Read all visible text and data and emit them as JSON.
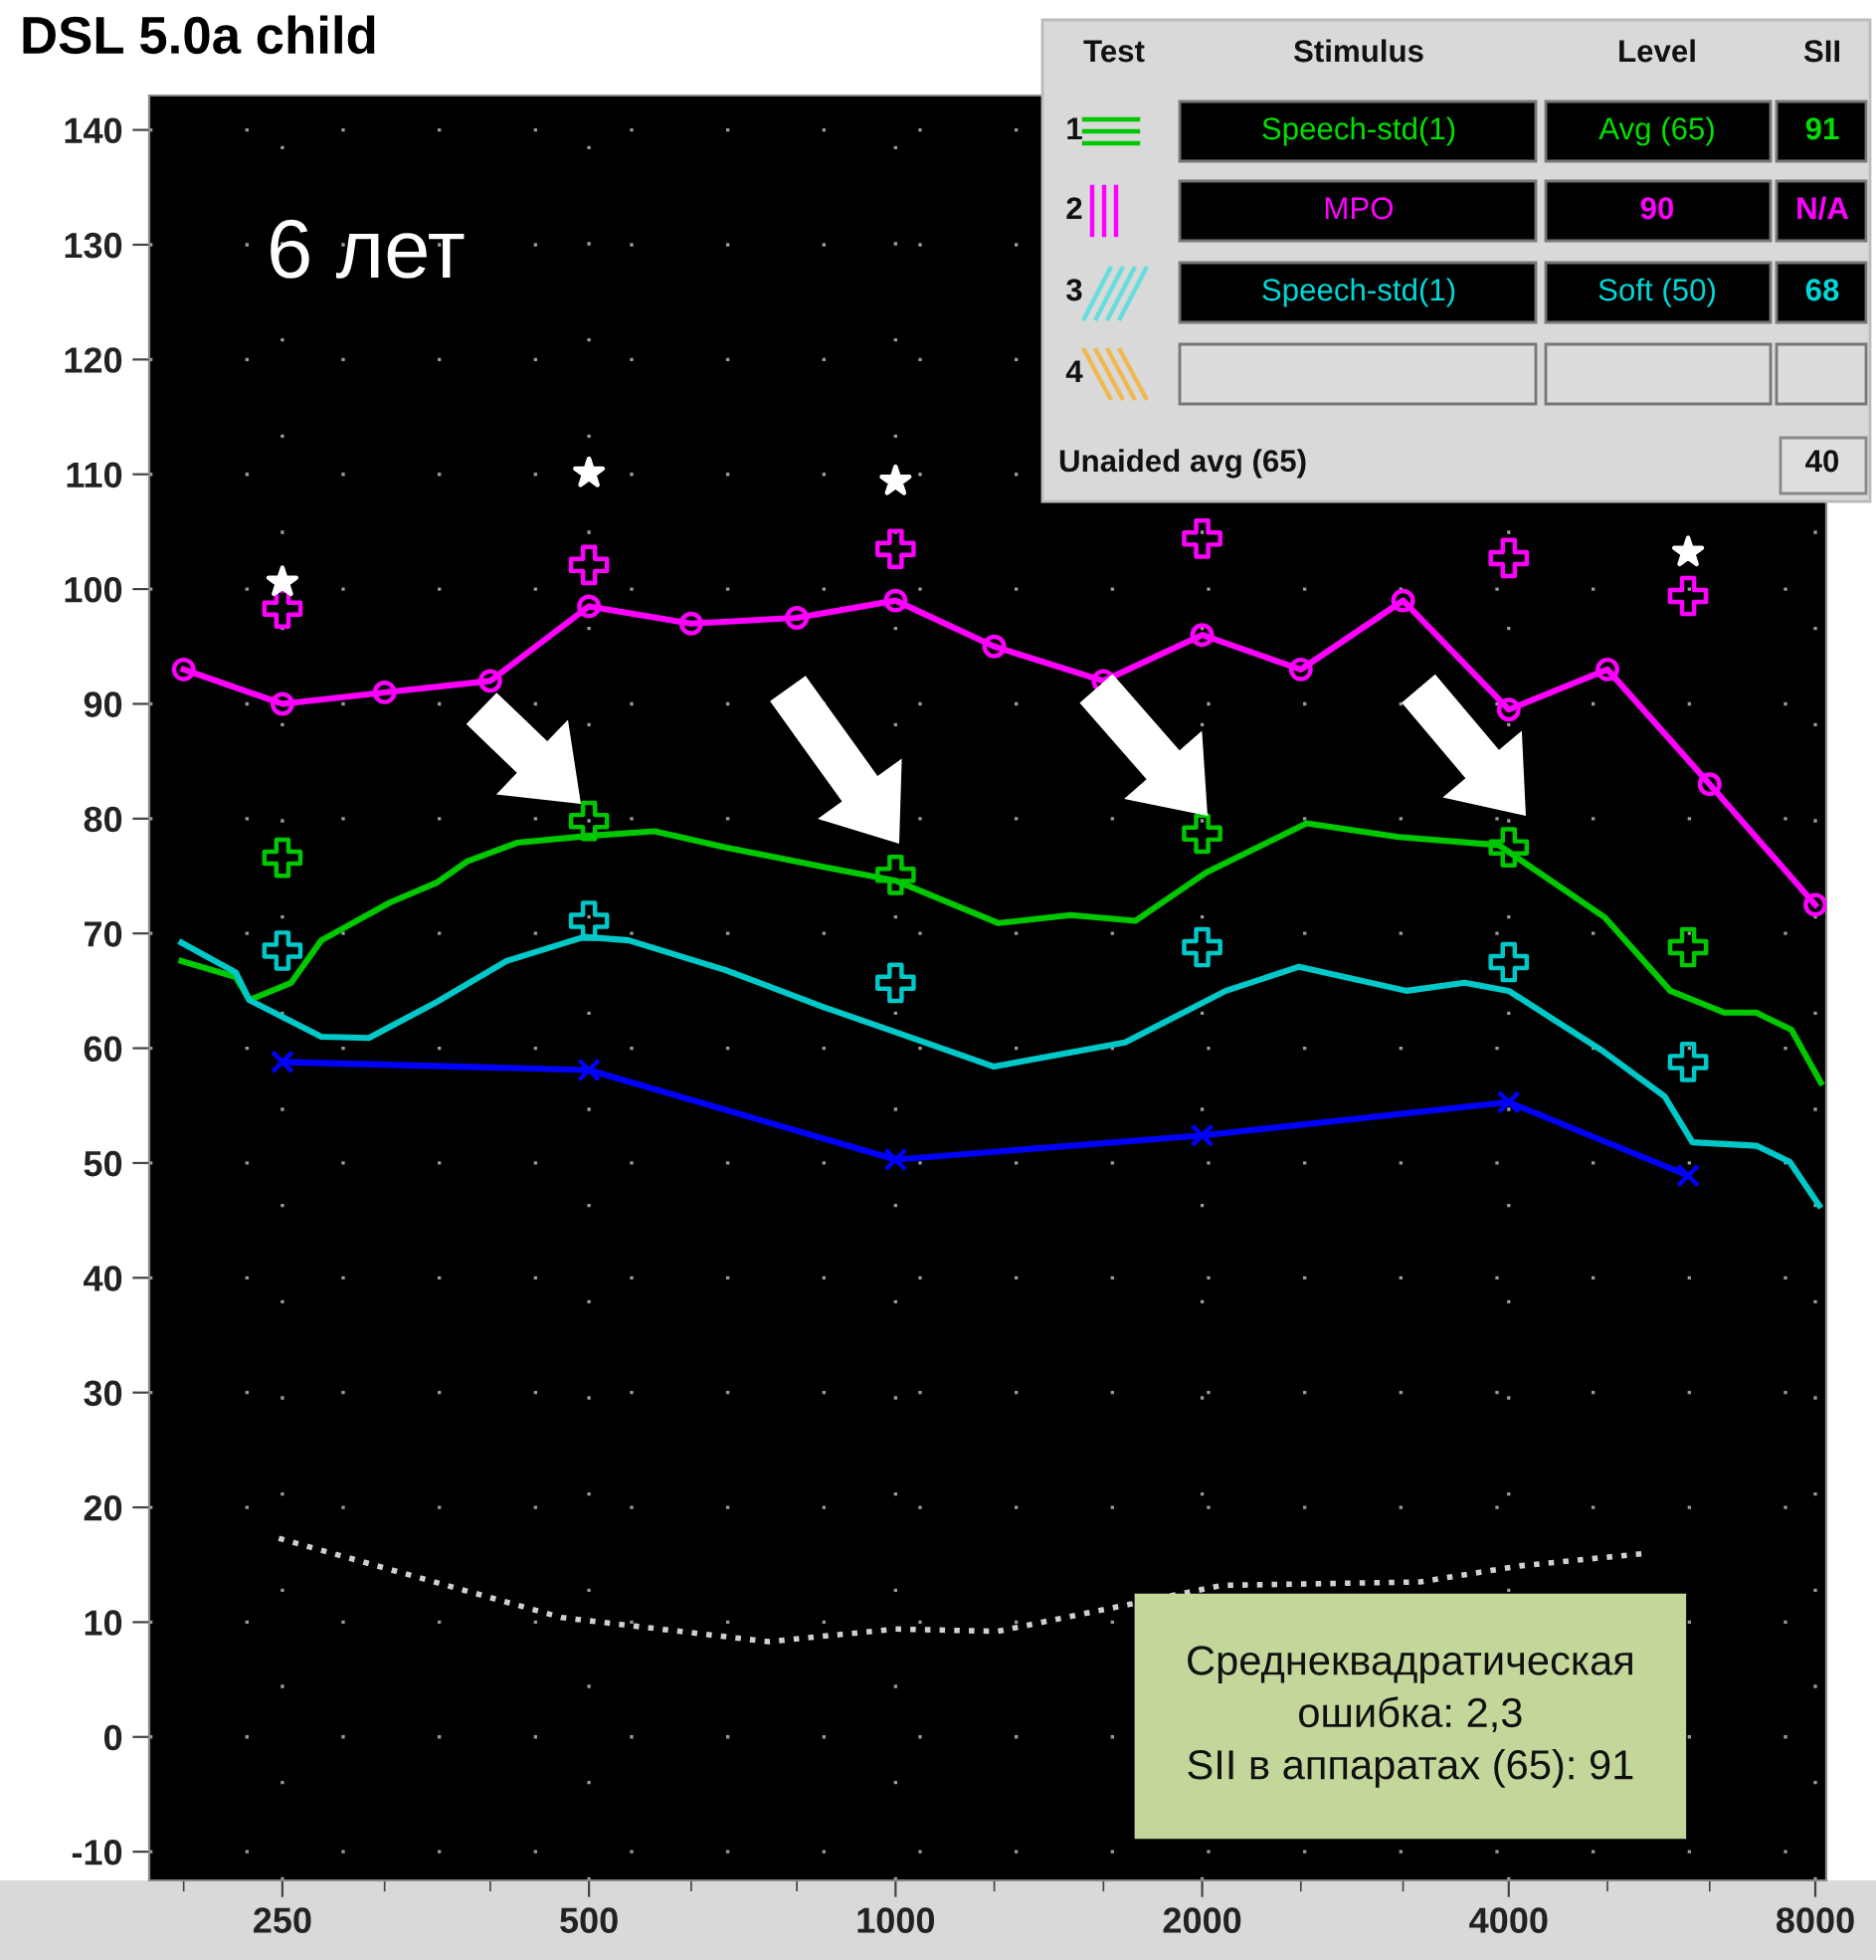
{
  "chart_data": {
    "type": "line",
    "title": "DSL 5.0a child",
    "log": "x",
    "xlim": [
      185,
      8200
    ],
    "ylim": [
      -12.5,
      143
    ],
    "xticks": [
      {
        "value": 200,
        "label": null
      },
      250,
      {
        "value": 315,
        "label": null
      },
      {
        "value": 400,
        "label": null
      },
      500,
      {
        "value": 630,
        "label": null
      },
      {
        "value": 800,
        "label": null
      },
      1000,
      {
        "value": 1250,
        "label": null
      },
      {
        "value": 1600,
        "label": null
      },
      2000,
      {
        "value": 2500,
        "label": null
      },
      {
        "value": 3150,
        "label": null
      },
      4000,
      {
        "value": 5000,
        "label": null
      },
      {
        "value": 6300,
        "label": null
      },
      8000
    ],
    "yticks": [
      -10,
      0,
      10,
      20,
      30,
      40,
      50,
      60,
      70,
      80,
      90,
      100,
      110,
      120,
      130,
      140
    ],
    "grid": true,
    "series": [
      {
        "type": "line",
        "color": "#ff00ff",
        "marker": "circle",
        "x": [
          200,
          250,
          315,
          400,
          500,
          630,
          800,
          1000,
          1250,
          1600,
          2000,
          2500,
          3150,
          4000,
          5000,
          6300,
          8000
        ],
        "values": [
          93,
          90,
          91,
          92,
          98.5,
          97,
          97.5,
          99,
          95,
          92,
          96,
          93,
          99,
          89.5,
          93,
          83,
          72.5
        ]
      },
      {
        "type": "scatter",
        "color": "#ff00ff",
        "marker": "plus",
        "x": [
          250,
          500,
          1000,
          2000,
          4000,
          6000
        ],
        "values": [
          98.3,
          102.1,
          103.5,
          104.4,
          102.7,
          99.4
        ]
      },
      {
        "type": "scatter",
        "color": "#ffffff",
        "marker": "star",
        "x": [
          250,
          500,
          1000,
          2000,
          4000,
          6000
        ],
        "values": [
          100.6,
          110.1,
          109.4,
          null,
          null,
          103.2
        ]
      },
      {
        "type": "line",
        "color": "#00c800",
        "x": [
          199,
          225,
          232,
          255,
          273,
          319,
          354,
          380,
          425,
          500,
          580,
          681,
          849,
          1000,
          1262,
          1485,
          1720,
          2018,
          2533,
          3118,
          3910,
          4969,
          5764,
          6515,
          7000,
          7580,
          8100
        ],
        "values": [
          67.6,
          66.2,
          64.2,
          65.7,
          69.4,
          72.7,
          74.4,
          76.3,
          77.9,
          78.5,
          78.9,
          77.5,
          75.8,
          74.6,
          70.9,
          71.6,
          71.1,
          75.3,
          79.6,
          78.4,
          77.7,
          71.4,
          65.0,
          63.1,
          63.1,
          61.6,
          57.0
        ]
      },
      {
        "type": "scatter",
        "color": "#00c800",
        "marker": "plus",
        "x": [
          250,
          500,
          1000,
          2000,
          4000,
          6000
        ],
        "values": [
          76.6,
          79.8,
          75.1,
          78.7,
          77.5,
          68.8
        ]
      },
      {
        "type": "line",
        "color": "#00c8c8",
        "x": [
          199,
          225,
          232,
          273,
          304,
          354,
          415,
          495,
          547,
          681,
          849,
          1000,
          1249,
          1680,
          2110,
          2490,
          3175,
          3620,
          4000,
          4939,
          5690,
          6060,
          7010,
          7550,
          8070
        ],
        "values": [
          69.2,
          66.6,
          64.2,
          61.0,
          60.9,
          64.0,
          67.6,
          69.7,
          69.4,
          66.8,
          63.6,
          61.4,
          58.4,
          60.5,
          65.0,
          67.1,
          65.0,
          65.7,
          65.0,
          59.8,
          55.8,
          51.8,
          51.5,
          50.1,
          46.3
        ]
      },
      {
        "type": "scatter",
        "color": "#00c8c8",
        "marker": "plus",
        "x": [
          250,
          500,
          1000,
          2000,
          4000,
          6000
        ],
        "values": [
          68.5,
          71.1,
          65.7,
          68.8,
          67.5,
          58.8
        ]
      },
      {
        "type": "line",
        "color": "#0000ff",
        "marker": "cross",
        "x": [
          250,
          500,
          1000,
          2000,
          4000,
          6000
        ],
        "values": [
          58.8,
          58.1,
          50.3,
          52.4,
          55.3,
          48.9
        ]
      },
      {
        "type": "line",
        "color": "#d0d0d0",
        "line_style": "dotted",
        "x": [
          248,
          470,
          750,
          1000,
          1260,
          2090,
          3270,
          4100,
          5460
        ],
        "values": [
          17.3,
          10.4,
          8.3,
          9.4,
          9.2,
          13.2,
          13.5,
          14.9,
          16.0
        ]
      }
    ],
    "annotations": [
      "6 лет",
      "Test",
      "Stimulus",
      "Level",
      "SII",
      "1",
      "Speech-std(1)",
      "Avg (65)",
      "91",
      "2",
      "MPO",
      "90",
      "N/A",
      "3",
      "Speech-std(1)",
      "Soft (50)",
      "68",
      "4",
      "Unaided avg (65)",
      "40",
      "Среднеквадратическая\nошибка: 2,3\nSII в аппаратах (65): 91"
    ]
  }
}
